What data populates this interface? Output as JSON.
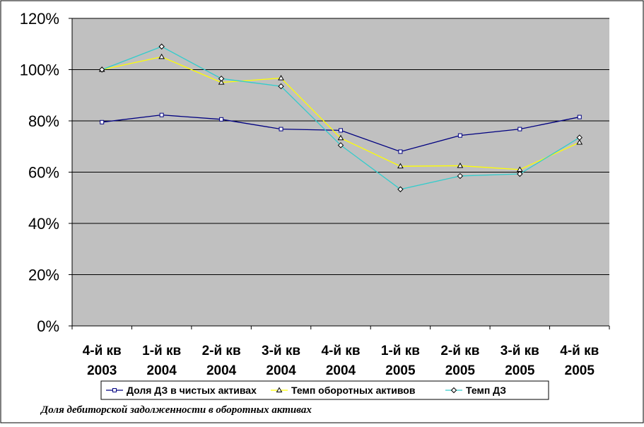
{
  "caption": "Доля дебиторской задолженности в оборотных активах",
  "colors": {
    "plot_background": "#c0c0c0",
    "gridline": "#000000",
    "axis": "#000000"
  },
  "chart_data": {
    "type": "line",
    "title": "",
    "xlabel": "",
    "ylabel": "",
    "ylim": [
      0,
      1.2
    ],
    "yticks": [
      0,
      0.2,
      0.4,
      0.6,
      0.8,
      1.0,
      1.2
    ],
    "ytick_labels": [
      "0%",
      "20%",
      "40%",
      "60%",
      "80%",
      "100%",
      "120%"
    ],
    "grid": true,
    "legend_position": "bottom",
    "categories": [
      [
        "4-й кв",
        "2003"
      ],
      [
        "1-й кв",
        "2004"
      ],
      [
        "2-й кв",
        "2004"
      ],
      [
        "3-й кв",
        "2004"
      ],
      [
        "4-й кв",
        "2004"
      ],
      [
        "1-й кв",
        "2005"
      ],
      [
        "2-й кв",
        "2005"
      ],
      [
        "3-й кв",
        "2005"
      ],
      [
        "4-й кв",
        "2005"
      ]
    ],
    "series": [
      {
        "name": "Доля ДЗ в чистых активах",
        "color": "#000080",
        "marker": "square",
        "values": [
          0.795,
          0.823,
          0.806,
          0.768,
          0.763,
          0.68,
          0.743,
          0.768,
          0.815
        ]
      },
      {
        "name": "Темп оборотных активов",
        "color": "#ffff00",
        "marker": "triangle",
        "values": [
          1.0,
          1.05,
          0.95,
          0.967,
          0.733,
          0.623,
          0.625,
          0.61,
          0.716
        ]
      },
      {
        "name": "Темп ДЗ",
        "color": "#33cccc",
        "marker": "diamond",
        "values": [
          1.0,
          1.09,
          0.965,
          0.935,
          0.705,
          0.533,
          0.585,
          0.593,
          0.735
        ]
      }
    ]
  }
}
